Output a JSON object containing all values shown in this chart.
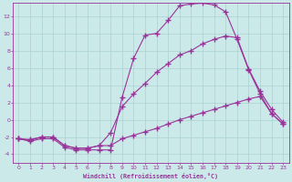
{
  "background_color": "#cce9e9",
  "grid_color": "#aad0d0",
  "line_color": "#993399",
  "xlabel": "Windchill (Refroidissement éolien,°C)",
  "xlim": [
    -0.5,
    23.5
  ],
  "ylim": [
    -5.0,
    13.5
  ],
  "yticks": [
    -4,
    -2,
    0,
    2,
    4,
    6,
    8,
    10,
    12
  ],
  "xticks": [
    0,
    1,
    2,
    3,
    4,
    5,
    6,
    7,
    8,
    9,
    10,
    11,
    12,
    13,
    14,
    15,
    16,
    17,
    18,
    19,
    20,
    21,
    22,
    23
  ],
  "curve1_x": [
    0,
    1,
    2,
    3,
    4,
    5,
    6,
    7,
    8,
    9,
    10,
    11,
    12,
    13,
    14,
    15,
    16,
    17,
    18,
    19,
    20,
    21,
    22,
    23
  ],
  "curve1_y": [
    -2.2,
    -2.5,
    -2.2,
    -2.2,
    -3.2,
    -3.5,
    -3.5,
    -3.5,
    -3.5,
    2.6,
    7.1,
    9.8,
    10.0,
    11.5,
    13.2,
    13.4,
    13.5,
    13.3,
    12.5,
    9.3,
    5.8,
    3.0,
    0.7,
    -0.5
  ],
  "curve2_x": [
    0,
    1,
    2,
    3,
    4,
    5,
    6,
    7,
    8,
    9,
    10,
    11,
    12,
    13,
    14,
    15,
    16,
    17,
    18,
    19,
    20,
    21,
    22,
    23
  ],
  "curve2_y": [
    -2.2,
    -2.4,
    -2.0,
    -2.0,
    -3.0,
    -3.3,
    -3.3,
    -3.0,
    -1.5,
    1.5,
    3.0,
    4.2,
    5.5,
    6.5,
    7.5,
    8.0,
    8.8,
    9.3,
    9.7,
    9.5,
    5.9,
    3.3,
    1.2,
    -0.3
  ],
  "curve3_x": [
    0,
    1,
    2,
    3,
    4,
    5,
    6,
    7,
    8,
    9,
    10,
    11,
    12,
    13,
    14,
    15,
    16,
    17,
    18,
    19,
    20,
    21,
    22,
    23
  ],
  "curve3_y": [
    -2.2,
    -2.3,
    -2.0,
    -2.0,
    -3.0,
    -3.3,
    -3.3,
    -3.0,
    -3.0,
    -2.2,
    -1.8,
    -1.4,
    -1.0,
    -0.5,
    0.0,
    0.4,
    0.8,
    1.2,
    1.6,
    2.0,
    2.4,
    2.7,
    0.7,
    -0.5
  ]
}
